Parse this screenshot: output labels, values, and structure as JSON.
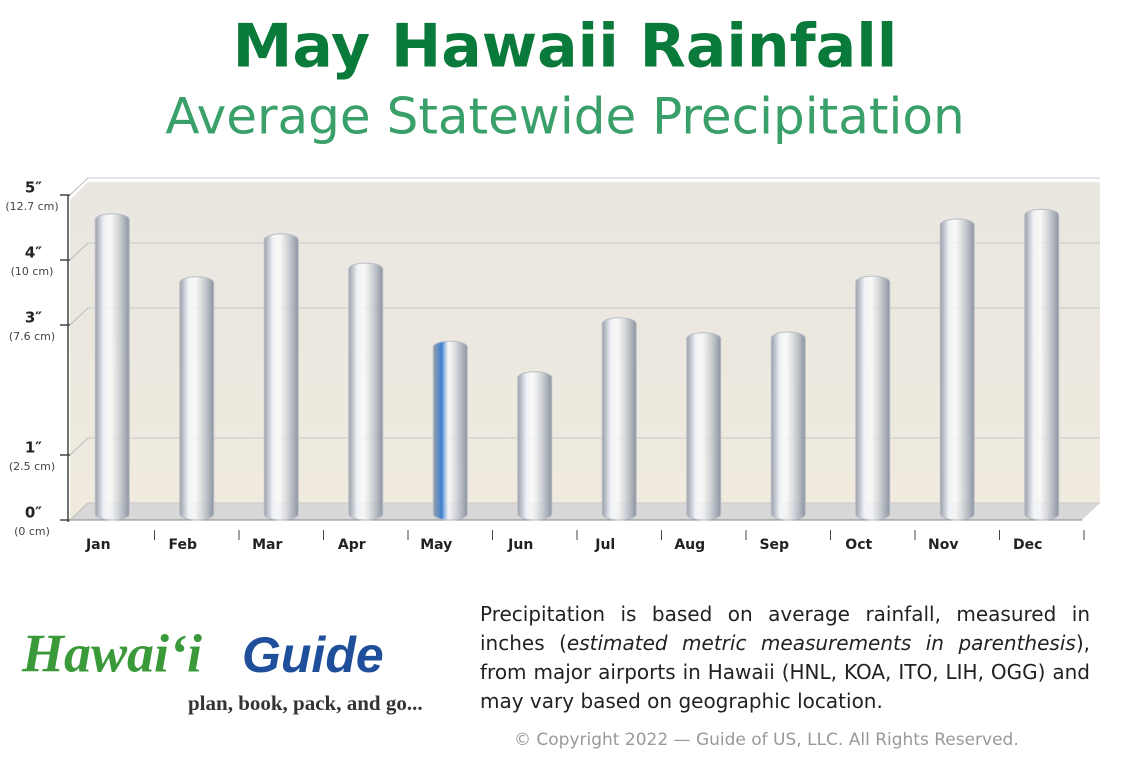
{
  "chart_data": {
    "type": "bar",
    "title": "May Hawaii Rainfall",
    "subtitle": "Average Statewide Precipitation",
    "categories": [
      "Jan",
      "Feb",
      "Mar",
      "Apr",
      "May",
      "Jun",
      "Jul",
      "Aug",
      "Sep",
      "Oct",
      "Nov",
      "Dec"
    ],
    "values": [
      4.65,
      3.68,
      4.34,
      3.89,
      2.69,
      2.22,
      3.05,
      2.82,
      2.83,
      3.69,
      4.57,
      4.72
    ],
    "bar_colors": [
      "#eef1f6",
      "#eef1f6",
      "#eef1f6",
      "#eef1f6",
      "#3b7fd0",
      "#eef1f6",
      "#eef1f6",
      "#eef1f6",
      "#eef1f6",
      "#eef1f6",
      "#eef1f6",
      "#eef1f6"
    ],
    "ylim": [
      0,
      5
    ],
    "yticks": [
      {
        "value": 0,
        "label": "0″",
        "sublabel": "(0 cm)"
      },
      {
        "value": 1,
        "label": "1″",
        "sublabel": "(2.5 cm)"
      },
      {
        "value": 3,
        "label": "3″",
        "sublabel": "(7.6 cm)"
      },
      {
        "value": 4,
        "label": "4″",
        "sublabel": "(10 cm)"
      },
      {
        "value": 5,
        "label": "5″",
        "sublabel": "(12.7 cm)"
      }
    ],
    "grid": true
  },
  "logo": {
    "name_part1": "Hawai‘i",
    "name_part2": "Guide",
    "tagline": "plan, book, pack, and go..."
  },
  "description": [
    "Precipitation is based on average rainfall, measured in inches (",
    "estimated metric measurements in parenthesis",
    "), from major airports in Hawaii (HNL, KOA, ITO, LIH, OGG) and may vary based on geographic location."
  ],
  "copyright": "© Copyright 2022 — Guide of US, LLC. All Rights Reserved."
}
